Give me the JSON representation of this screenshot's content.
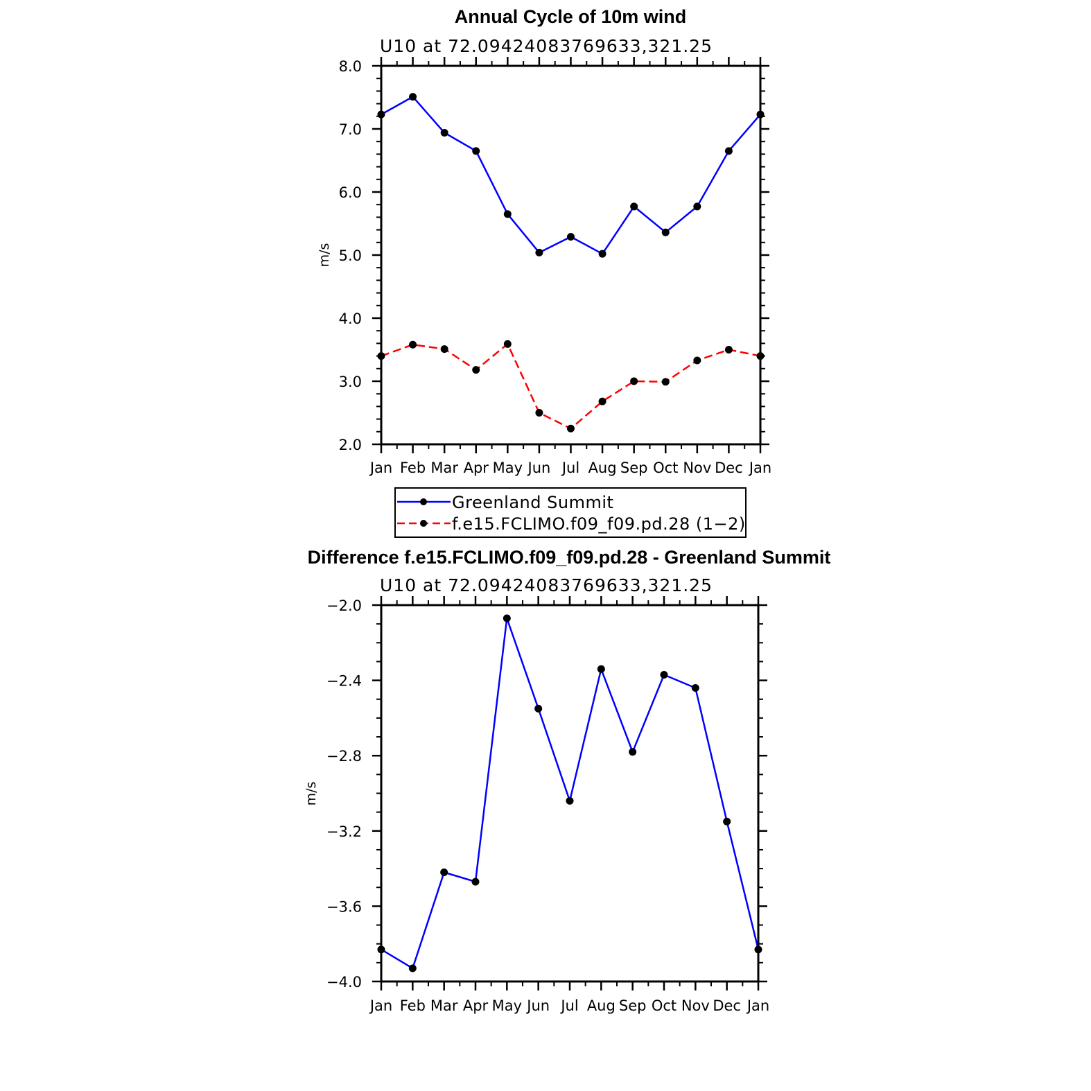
{
  "chart_data": [
    {
      "type": "line",
      "title": "Annual Cycle of 10m wind",
      "subtitle": "U10  at  72.09424083769633,321.25",
      "xlabel": "",
      "ylabel": "m/s",
      "ylim": [
        2.0,
        8.0
      ],
      "yticks": [
        "2.0",
        "3.0",
        "4.0",
        "5.0",
        "6.0",
        "7.0",
        "8.0"
      ],
      "categories": [
        "Jan",
        "Feb",
        "Mar",
        "Apr",
        "May",
        "Jun",
        "Jul",
        "Aug",
        "Sep",
        "Oct",
        "Nov",
        "Dec",
        "Jan"
      ],
      "grid": false,
      "legend": "below",
      "series": [
        {
          "name": "Greenland Summit",
          "color": "#0000ff",
          "dash": "solid",
          "values": [
            7.23,
            7.51,
            6.94,
            6.65,
            5.65,
            5.04,
            5.29,
            5.02,
            5.77,
            5.36,
            5.77,
            6.65,
            7.23
          ]
        },
        {
          "name": "f.e15.FCLIMO.f09_f09.pd.28 (1−2)",
          "color": "#ff0000",
          "dash": "dashed",
          "values": [
            3.4,
            3.58,
            3.51,
            3.18,
            3.59,
            2.5,
            2.25,
            2.68,
            3.0,
            2.99,
            3.33,
            3.5,
            3.4
          ]
        }
      ]
    },
    {
      "type": "line",
      "title": "Difference f.e15.FCLIMO.f09_f09.pd.28 - Greenland Summit",
      "subtitle": "U10  at  72.09424083769633,321.25",
      "xlabel": "",
      "ylabel": "m/s",
      "ylim": [
        -4.0,
        -2.0
      ],
      "yticks": [
        "−4.0",
        "−3.6",
        "−3.2",
        "−2.8",
        "−2.4",
        "−2.0"
      ],
      "categories": [
        "Jan",
        "Feb",
        "Mar",
        "Apr",
        "May",
        "Jun",
        "Jul",
        "Aug",
        "Sep",
        "Oct",
        "Nov",
        "Dec",
        "Jan"
      ],
      "grid": false,
      "series": [
        {
          "color": "#0000ff",
          "dash": "solid",
          "values": [
            -3.83,
            -3.93,
            -3.42,
            -3.47,
            -2.07,
            -2.55,
            -3.04,
            -2.34,
            -2.78,
            -2.37,
            -2.44,
            -3.15,
            -3.83
          ]
        }
      ]
    }
  ]
}
